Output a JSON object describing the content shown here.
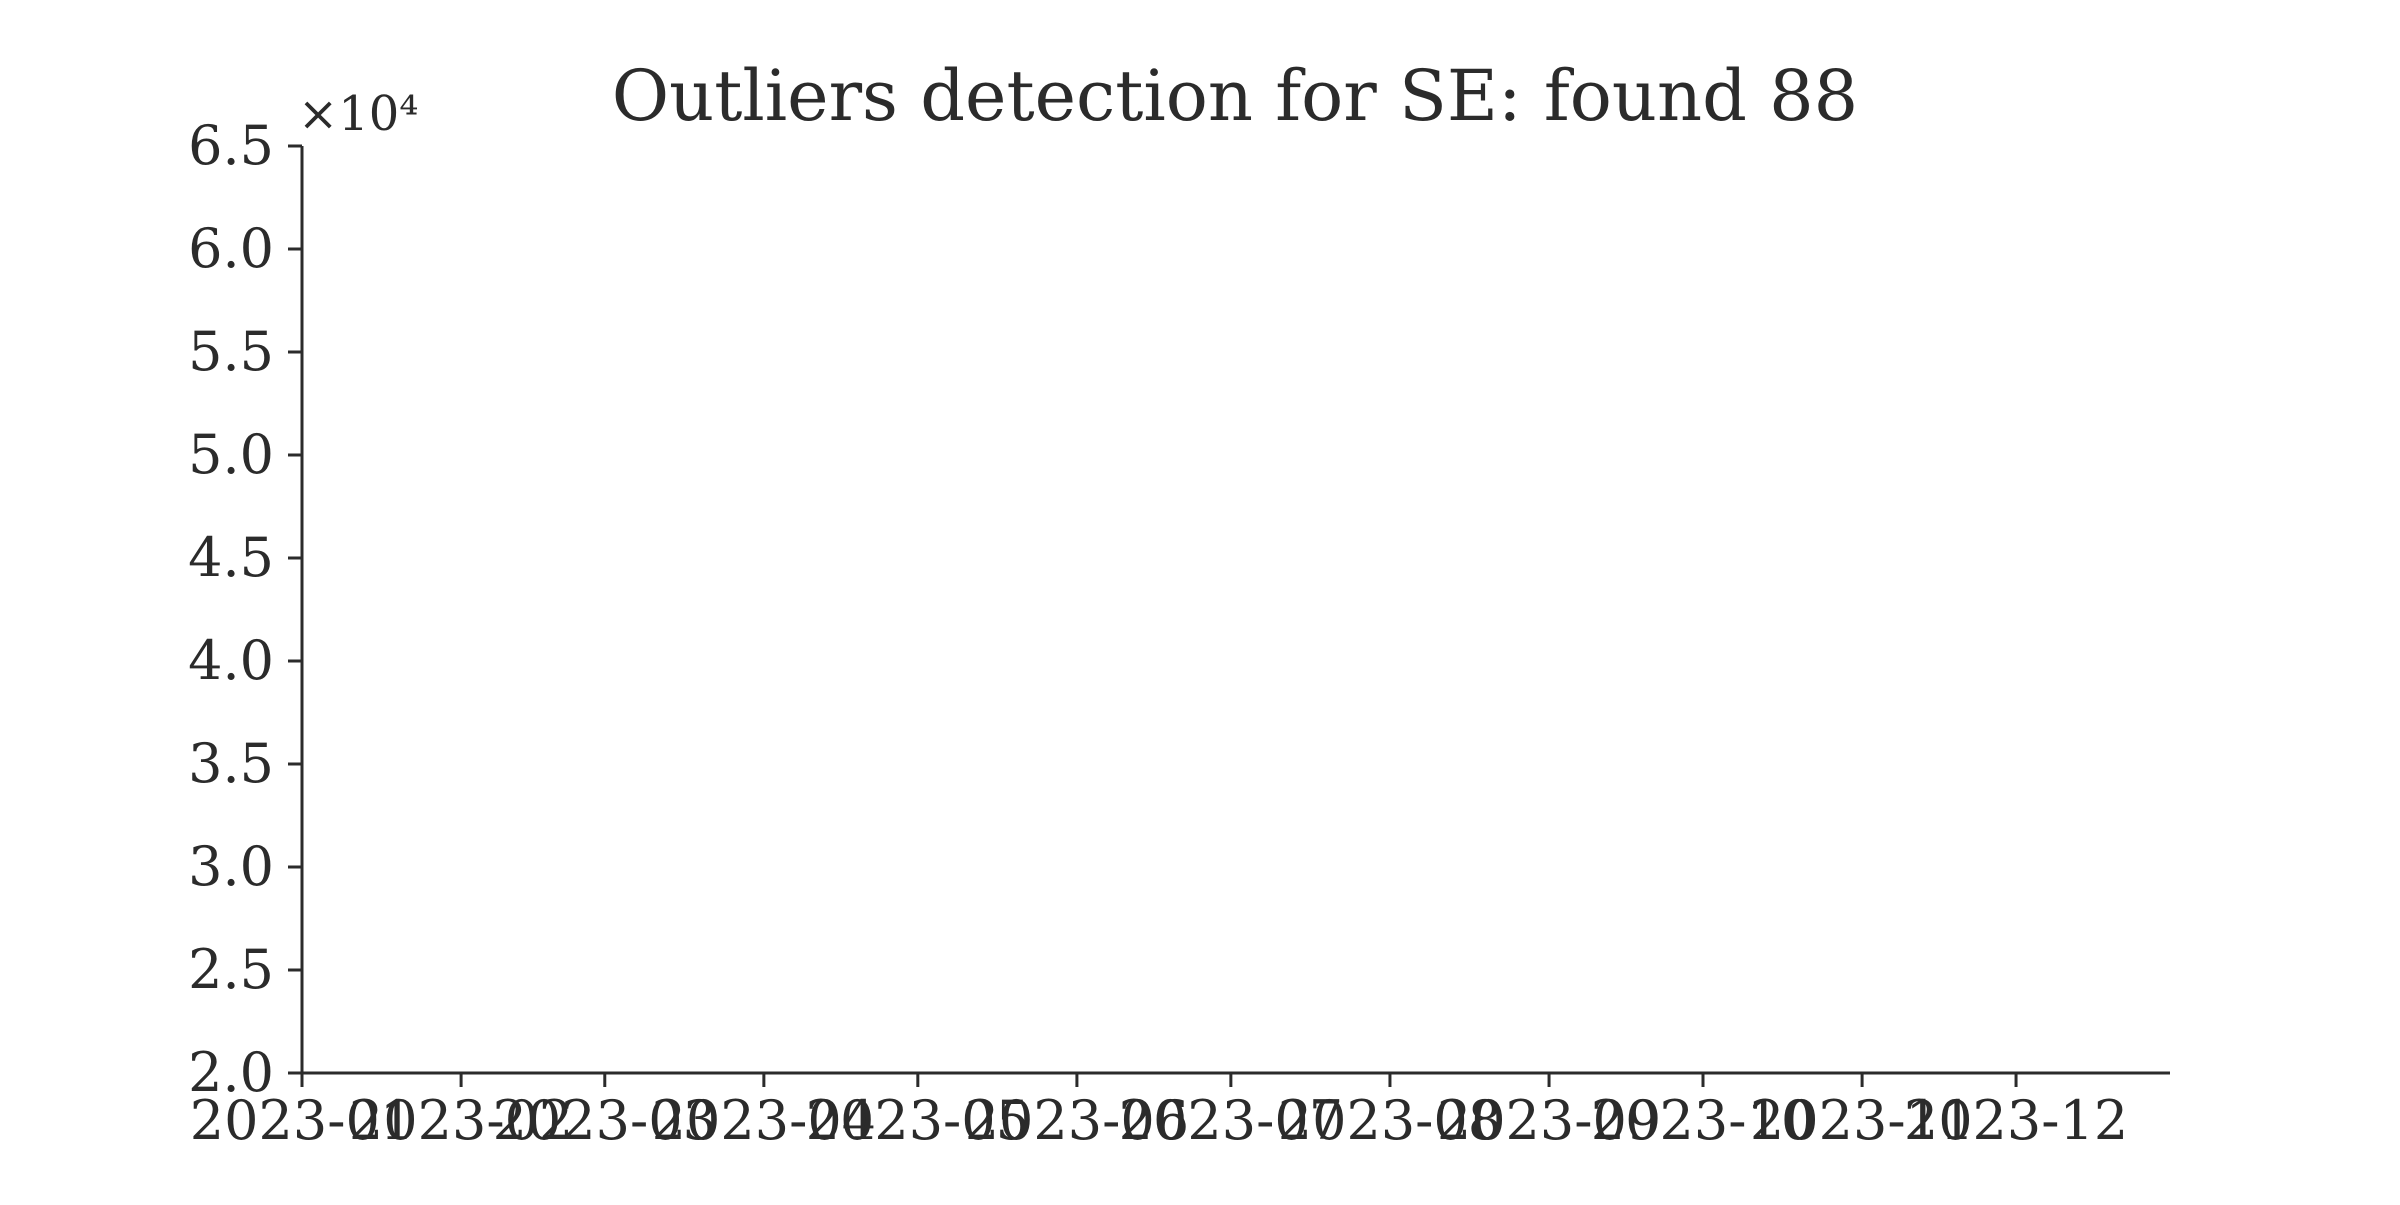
{
  "chart_data": {
    "type": "scatter",
    "title": "Outliers detection for SE: found 88",
    "xlabel": "",
    "ylabel": "",
    "y_offset_label": "×10⁴",
    "y_scale_factor": 10000,
    "xlim": [
      "2023-01-01",
      "2023-12-31"
    ],
    "ylim": [
      20000,
      65000
    ],
    "x_ticks": [
      {
        "value": "2023-01-01",
        "label": "2023-01"
      },
      {
        "value": "2023-02-01",
        "label": "2023-02"
      },
      {
        "value": "2023-03-01",
        "label": "2023-03"
      },
      {
        "value": "2023-04-01",
        "label": "2023-04"
      },
      {
        "value": "2023-05-01",
        "label": "2023-05"
      },
      {
        "value": "2023-06-01",
        "label": "2023-06"
      },
      {
        "value": "2023-07-01",
        "label": "2023-07"
      },
      {
        "value": "2023-08-01",
        "label": "2023-08"
      },
      {
        "value": "2023-09-01",
        "label": "2023-09"
      },
      {
        "value": "2023-10-01",
        "label": "2023-10"
      },
      {
        "value": "2023-11-01",
        "label": "2023-11"
      },
      {
        "value": "2023-12-01",
        "label": "2023-12"
      }
    ],
    "y_ticks": [
      {
        "value": 20000,
        "label": "2.0"
      },
      {
        "value": 25000,
        "label": "2.5"
      },
      {
        "value": 30000,
        "label": "3.0"
      },
      {
        "value": 35000,
        "label": "3.5"
      },
      {
        "value": 40000,
        "label": "4.0"
      },
      {
        "value": 45000,
        "label": "4.5"
      },
      {
        "value": 50000,
        "label": "5.0"
      },
      {
        "value": 55000,
        "label": "5.5"
      },
      {
        "value": 60000,
        "label": "6.0"
      },
      {
        "value": 65000,
        "label": "6.5"
      }
    ],
    "series": [],
    "grid": false,
    "legend": "none",
    "colors": {
      "axis": "#2b2b2b",
      "background": "#ffffff"
    }
  }
}
